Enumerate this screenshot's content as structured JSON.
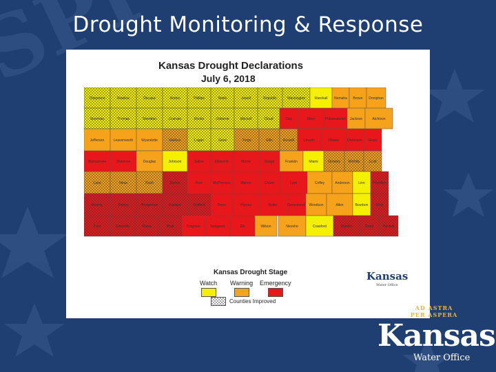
{
  "slide": {
    "title": "Drought Monitoring & Response",
    "background_color": "#1f3f73"
  },
  "map": {
    "title": "Kansas Drought Declarations",
    "date": "July 6, 2018",
    "colors": {
      "watch": "#f4f000",
      "warning": "#f7a21b",
      "emergency": "#e8171b"
    },
    "legend": {
      "title": "Kansas Drought Stage",
      "watch_label": "Watch",
      "warning_label": "Warning",
      "emergency_label": "Emergency",
      "improved_label": "Counties Improved"
    },
    "counties": [
      {
        "name": "Cheyenne",
        "stage": "watch",
        "improved": true
      },
      {
        "name": "Rawlins",
        "stage": "watch",
        "improved": true
      },
      {
        "name": "Decatur",
        "stage": "watch",
        "improved": true
      },
      {
        "name": "Norton",
        "stage": "watch",
        "improved": true
      },
      {
        "name": "Phillips",
        "stage": "watch",
        "improved": true
      },
      {
        "name": "Smith",
        "stage": "watch",
        "improved": true
      },
      {
        "name": "Jewell",
        "stage": "watch",
        "improved": true
      },
      {
        "name": "Republic",
        "stage": "watch",
        "improved": true
      },
      {
        "name": "Washington",
        "stage": "watch",
        "improved": true
      },
      {
        "name": "Marshall",
        "stage": "watch",
        "improved": false
      },
      {
        "name": "Nemaha",
        "stage": "warning",
        "improved": false
      },
      {
        "name": "Brown",
        "stage": "warning",
        "improved": false
      },
      {
        "name": "Doniphan",
        "stage": "warning",
        "improved": false
      },
      {
        "name": "Sherman",
        "stage": "watch",
        "improved": true
      },
      {
        "name": "Thomas",
        "stage": "watch",
        "improved": true
      },
      {
        "name": "Sheridan",
        "stage": "watch",
        "improved": true
      },
      {
        "name": "Graham",
        "stage": "watch",
        "improved": true
      },
      {
        "name": "Rooks",
        "stage": "watch",
        "improved": true
      },
      {
        "name": "Osborne",
        "stage": "watch",
        "improved": true
      },
      {
        "name": "Mitchell",
        "stage": "watch",
        "improved": true
      },
      {
        "name": "Cloud",
        "stage": "watch",
        "improved": true
      },
      {
        "name": "Clay",
        "stage": "emergency",
        "improved": false
      },
      {
        "name": "Riley",
        "stage": "emergency",
        "improved": false
      },
      {
        "name": "Pottawatomie",
        "stage": "emergency",
        "improved": false
      },
      {
        "name": "Jackson",
        "stage": "warning",
        "improved": false
      },
      {
        "name": "Atchison",
        "stage": "warning",
        "improved": false
      },
      {
        "name": "Jefferson",
        "stage": "warning",
        "improved": false
      },
      {
        "name": "Leavenworth",
        "stage": "warning",
        "improved": false
      },
      {
        "name": "Wyandotte",
        "stage": "warning",
        "improved": false
      },
      {
        "name": "Wallace",
        "stage": "warning",
        "improved": true
      },
      {
        "name": "Logan",
        "stage": "watch",
        "improved": true
      },
      {
        "name": "Gove",
        "stage": "watch",
        "improved": true
      },
      {
        "name": "Trego",
        "stage": "warning",
        "improved": true
      },
      {
        "name": "Ellis",
        "stage": "warning",
        "improved": true
      },
      {
        "name": "Russell",
        "stage": "warning",
        "improved": true
      },
      {
        "name": "Lincoln",
        "stage": "emergency",
        "improved": false
      },
      {
        "name": "Ottawa",
        "stage": "emergency",
        "improved": false
      },
      {
        "name": "Dickinson",
        "stage": "emergency",
        "improved": false
      },
      {
        "name": "Geary",
        "stage": "emergency",
        "improved": false
      },
      {
        "name": "Wabaunsee",
        "stage": "emergency",
        "improved": false
      },
      {
        "name": "Shawnee",
        "stage": "emergency",
        "improved": false
      },
      {
        "name": "Douglas",
        "stage": "warning",
        "improved": false
      },
      {
        "name": "Johnson",
        "stage": "watch",
        "improved": false
      },
      {
        "name": "Saline",
        "stage": "emergency",
        "improved": false
      },
      {
        "name": "Ellsworth",
        "stage": "emergency",
        "improved": false
      },
      {
        "name": "Morris",
        "stage": "emergency",
        "improved": false
      },
      {
        "name": "Osage",
        "stage": "emergency",
        "improved": false
      },
      {
        "name": "Franklin",
        "stage": "warning",
        "improved": false
      },
      {
        "name": "Miami",
        "stage": "watch",
        "improved": false
      },
      {
        "name": "Greeley",
        "stage": "warning",
        "improved": true
      },
      {
        "name": "Wichita",
        "stage": "warning",
        "improved": true
      },
      {
        "name": "Scott",
        "stage": "warning",
        "improved": true
      },
      {
        "name": "Lane",
        "stage": "warning",
        "improved": true
      },
      {
        "name": "Ness",
        "stage": "warning",
        "improved": true
      },
      {
        "name": "Rush",
        "stage": "warning",
        "improved": true
      },
      {
        "name": "Barton",
        "stage": "emergency",
        "improved": true
      },
      {
        "name": "Rice",
        "stage": "emergency",
        "improved": false
      },
      {
        "name": "McPherson",
        "stage": "emergency",
        "improved": false
      },
      {
        "name": "Marion",
        "stage": "emergency",
        "improved": false
      },
      {
        "name": "Chase",
        "stage": "emergency",
        "improved": false
      },
      {
        "name": "Lyon",
        "stage": "emergency",
        "improved": false
      },
      {
        "name": "Coffey",
        "stage": "warning",
        "improved": false
      },
      {
        "name": "Anderson",
        "stage": "warning",
        "improved": false
      },
      {
        "name": "Linn",
        "stage": "watch",
        "improved": false
      },
      {
        "name": "Hamilton",
        "stage": "emergency",
        "improved": true
      },
      {
        "name": "Kearny",
        "stage": "emergency",
        "improved": true
      },
      {
        "name": "Finney",
        "stage": "emergency",
        "improved": true
      },
      {
        "name": "Hodgeman",
        "stage": "emergency",
        "improved": true
      },
      {
        "name": "Pawnee",
        "stage": "emergency",
        "improved": true
      },
      {
        "name": "Stafford",
        "stage": "emergency",
        "improved": true
      },
      {
        "name": "Reno",
        "stage": "emergency",
        "improved": false
      },
      {
        "name": "Harvey",
        "stage": "emergency",
        "improved": false
      },
      {
        "name": "Butler",
        "stage": "emergency",
        "improved": false
      },
      {
        "name": "Greenwood",
        "stage": "emergency",
        "improved": false
      },
      {
        "name": "Woodson",
        "stage": "warning",
        "improved": false
      },
      {
        "name": "Allen",
        "stage": "warning",
        "improved": false
      },
      {
        "name": "Bourbon",
        "stage": "watch",
        "improved": false
      },
      {
        "name": "Gray",
        "stage": "emergency",
        "improved": true
      },
      {
        "name": "Ford",
        "stage": "emergency",
        "improved": true
      },
      {
        "name": "Edwards",
        "stage": "emergency",
        "improved": true
      },
      {
        "name": "Kiowa",
        "stage": "emergency",
        "improved": true
      },
      {
        "name": "Pratt",
        "stage": "emergency",
        "improved": true
      },
      {
        "name": "Kingman",
        "stage": "emergency",
        "improved": false
      },
      {
        "name": "Sedgwick",
        "stage": "emergency",
        "improved": false
      },
      {
        "name": "Elk",
        "stage": "emergency",
        "improved": false
      },
      {
        "name": "Wilson",
        "stage": "warning",
        "improved": false
      },
      {
        "name": "Neosho",
        "stage": "warning",
        "improved": false
      },
      {
        "name": "Crawford",
        "stage": "watch",
        "improved": false
      },
      {
        "name": "Stanton",
        "stage": "emergency",
        "improved": true
      },
      {
        "name": "Grant",
        "stage": "emergency",
        "improved": true
      },
      {
        "name": "Haskell",
        "stage": "emergency",
        "improved": true
      },
      {
        "name": "Morton",
        "stage": "emergency",
        "improved": true
      },
      {
        "name": "Stevens",
        "stage": "emergency",
        "improved": true
      },
      {
        "name": "Seward",
        "stage": "emergency",
        "improved": true
      },
      {
        "name": "Meade",
        "stage": "emergency",
        "improved": true
      },
      {
        "name": "Clark",
        "stage": "emergency",
        "improved": true
      },
      {
        "name": "Comanche",
        "stage": "emergency",
        "improved": true
      },
      {
        "name": "Barber",
        "stage": "emergency",
        "improved": true
      },
      {
        "name": "Harper",
        "stage": "emergency",
        "improved": false
      },
      {
        "name": "Sumner",
        "stage": "emergency",
        "improved": false
      },
      {
        "name": "Cowley",
        "stage": "emergency",
        "improved": false
      },
      {
        "name": "Chautauqua",
        "stage": "warning",
        "improved": false
      },
      {
        "name": "Montgomery",
        "stage": "warning",
        "improved": false
      },
      {
        "name": "Labette",
        "stage": "watch",
        "improved": false
      },
      {
        "name": "Cherokee",
        "stage": "watch",
        "improved": false
      }
    ]
  },
  "small_logo": {
    "name": "Kansas",
    "sub": "Water Office"
  },
  "corner_logo": {
    "motto": "AD ASTRA PER ASPERA",
    "name": "Kansas",
    "sub": "Water Office"
  }
}
